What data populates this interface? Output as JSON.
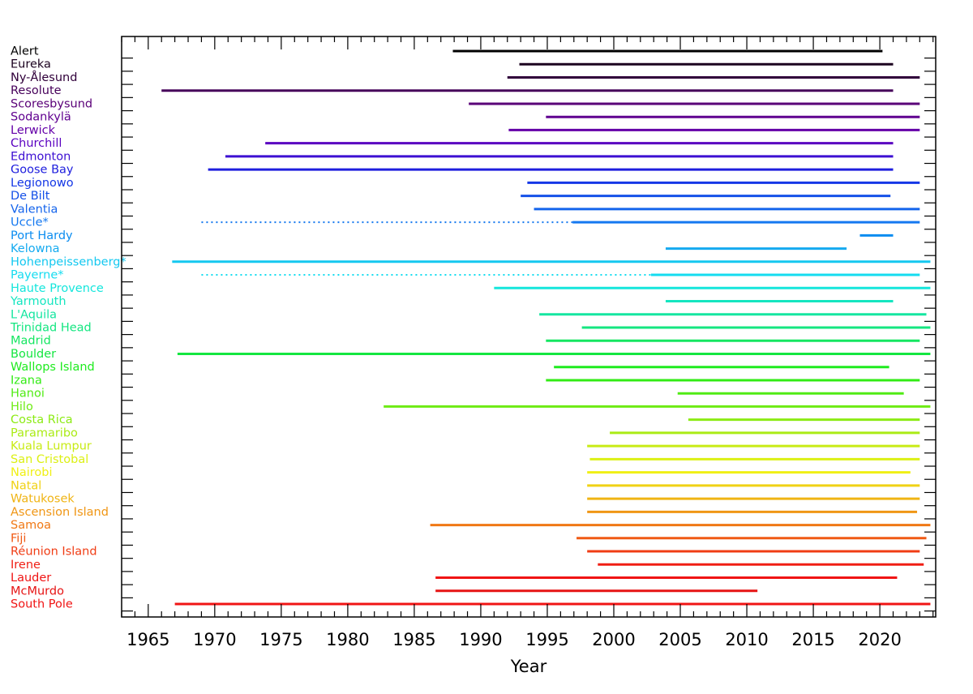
{
  "chart_data": {
    "type": "timeline",
    "title": "",
    "xlabel": "Year",
    "ylabel": "",
    "xlim": [
      1963,
      2024.2
    ],
    "xticks": [
      1965,
      1970,
      1975,
      1980,
      1985,
      1990,
      1995,
      2000,
      2005,
      2010,
      2015,
      2020
    ],
    "grid": false,
    "stations": [
      {
        "name": "Alert",
        "color": "#000000",
        "segments": [
          {
            "start": 1987.9,
            "end": 2020.2,
            "style": "solid"
          }
        ]
      },
      {
        "name": "Eureka",
        "color": "#1a001e",
        "segments": [
          {
            "start": 1992.9,
            "end": 2021.0,
            "style": "solid"
          }
        ]
      },
      {
        "name": "Ny-Ålesund",
        "color": "#30003a",
        "segments": [
          {
            "start": 1992.0,
            "end": 2023.0,
            "style": "solid"
          }
        ]
      },
      {
        "name": "Resolute",
        "color": "#46005a",
        "segments": [
          {
            "start": 1966.0,
            "end": 2021.0,
            "style": "solid"
          }
        ]
      },
      {
        "name": "Scoresbysund",
        "color": "#5a0078",
        "segments": [
          {
            "start": 1989.1,
            "end": 2023.0,
            "style": "solid"
          }
        ]
      },
      {
        "name": "Sodankylä",
        "color": "#600090",
        "segments": [
          {
            "start": 1994.9,
            "end": 2023.0,
            "style": "solid"
          }
        ]
      },
      {
        "name": "Lerwick",
        "color": "#6400a8",
        "segments": [
          {
            "start": 1992.1,
            "end": 2023.0,
            "style": "solid"
          }
        ]
      },
      {
        "name": "Churchill",
        "color": "#5a00c0",
        "segments": [
          {
            "start": 1973.8,
            "end": 2021.0,
            "style": "solid"
          }
        ]
      },
      {
        "name": "Edmonton",
        "color": "#3c0fd2",
        "segments": [
          {
            "start": 1970.8,
            "end": 2021.0,
            "style": "solid"
          }
        ]
      },
      {
        "name": "Goose Bay",
        "color": "#1e1ede",
        "segments": [
          {
            "start": 1969.5,
            "end": 2021.0,
            "style": "solid"
          }
        ]
      },
      {
        "name": "Legionowo",
        "color": "#1437e6",
        "segments": [
          {
            "start": 1993.5,
            "end": 2023.0,
            "style": "solid"
          }
        ]
      },
      {
        "name": "De Bilt",
        "color": "#1450e8",
        "segments": [
          {
            "start": 1993.0,
            "end": 2020.8,
            "style": "solid"
          }
        ]
      },
      {
        "name": "Valentia",
        "color": "#1464ec",
        "segments": [
          {
            "start": 1994.0,
            "end": 2023.0,
            "style": "solid"
          }
        ]
      },
      {
        "name": "Uccle*",
        "color": "#1478f0",
        "segments": [
          {
            "start": 1969.0,
            "end": 1996.9,
            "style": "dotted"
          },
          {
            "start": 1996.9,
            "end": 2023.0,
            "style": "solid"
          }
        ]
      },
      {
        "name": "Port Hardy",
        "color": "#0a8cf0",
        "segments": [
          {
            "start": 2018.5,
            "end": 2021.0,
            "style": "solid"
          }
        ]
      },
      {
        "name": "Kelowna",
        "color": "#14aaf0",
        "segments": [
          {
            "start": 2003.9,
            "end": 2017.5,
            "style": "solid"
          }
        ]
      },
      {
        "name": "Hohenpeissenberg*",
        "color": "#14c8f0",
        "segments": [
          {
            "start": 1966.8,
            "end": 2023.8,
            "style": "solid"
          }
        ]
      },
      {
        "name": "Payerne*",
        "color": "#14dcf0",
        "segments": [
          {
            "start": 1969.0,
            "end": 2002.8,
            "style": "dotted"
          },
          {
            "start": 2002.8,
            "end": 2023.0,
            "style": "solid"
          }
        ]
      },
      {
        "name": "Haute Provence",
        "color": "#14e6dc",
        "segments": [
          {
            "start": 1991.0,
            "end": 2023.8,
            "style": "solid"
          }
        ]
      },
      {
        "name": "Yarmouth",
        "color": "#14e6c0",
        "segments": [
          {
            "start": 2003.9,
            "end": 2021.0,
            "style": "solid"
          }
        ]
      },
      {
        "name": "L'Aquila",
        "color": "#14e6a0",
        "segments": [
          {
            "start": 1994.4,
            "end": 2023.5,
            "style": "solid"
          }
        ]
      },
      {
        "name": "Trinidad Head",
        "color": "#14e680",
        "segments": [
          {
            "start": 1997.6,
            "end": 2023.8,
            "style": "solid"
          }
        ]
      },
      {
        "name": "Madrid",
        "color": "#14e660",
        "segments": [
          {
            "start": 1994.9,
            "end": 2023.0,
            "style": "solid"
          }
        ]
      },
      {
        "name": "Boulder",
        "color": "#14e640",
        "segments": [
          {
            "start": 1967.2,
            "end": 2023.8,
            "style": "solid"
          }
        ]
      },
      {
        "name": "Wallops Island",
        "color": "#1eeb1e",
        "segments": [
          {
            "start": 1995.5,
            "end": 2020.7,
            "style": "solid"
          }
        ]
      },
      {
        "name": "Izana",
        "color": "#32eb14",
        "segments": [
          {
            "start": 1994.9,
            "end": 2023.0,
            "style": "solid"
          }
        ]
      },
      {
        "name": "Hanoi",
        "color": "#50eb14",
        "segments": [
          {
            "start": 2004.8,
            "end": 2021.8,
            "style": "solid"
          }
        ]
      },
      {
        "name": "Hilo",
        "color": "#6eeb14",
        "segments": [
          {
            "start": 1982.7,
            "end": 2023.8,
            "style": "solid"
          }
        ]
      },
      {
        "name": "Costa Rica",
        "color": "#8ceb14",
        "segments": [
          {
            "start": 2005.6,
            "end": 2023.0,
            "style": "solid"
          }
        ]
      },
      {
        "name": "Paramaribo",
        "color": "#aaeb14",
        "segments": [
          {
            "start": 1999.7,
            "end": 2023.0,
            "style": "solid"
          }
        ]
      },
      {
        "name": "Kuala Lumpur",
        "color": "#c8eb14",
        "segments": [
          {
            "start": 1998.0,
            "end": 2023.0,
            "style": "solid"
          }
        ]
      },
      {
        "name": "San Cristobal",
        "color": "#dcf014",
        "segments": [
          {
            "start": 1998.2,
            "end": 2023.0,
            "style": "solid"
          }
        ]
      },
      {
        "name": "Nairobi",
        "color": "#f0f014",
        "segments": [
          {
            "start": 1998.0,
            "end": 2022.3,
            "style": "solid"
          }
        ]
      },
      {
        "name": "Natal",
        "color": "#f0d214",
        "segments": [
          {
            "start": 1998.0,
            "end": 2023.0,
            "style": "solid"
          }
        ]
      },
      {
        "name": "Watukosek",
        "color": "#f0b414",
        "segments": [
          {
            "start": 1998.0,
            "end": 2023.0,
            "style": "solid"
          }
        ]
      },
      {
        "name": "Ascension Island",
        "color": "#f09614",
        "segments": [
          {
            "start": 1998.0,
            "end": 2022.8,
            "style": "solid"
          }
        ]
      },
      {
        "name": "Samoa",
        "color": "#f07814",
        "segments": [
          {
            "start": 1986.2,
            "end": 2023.8,
            "style": "solid"
          }
        ]
      },
      {
        "name": "Fiji",
        "color": "#f05a14",
        "segments": [
          {
            "start": 1997.2,
            "end": 2023.5,
            "style": "solid"
          }
        ]
      },
      {
        "name": "Réunion Island",
        "color": "#f03c14",
        "segments": [
          {
            "start": 1998.0,
            "end": 2023.0,
            "style": "solid"
          }
        ]
      },
      {
        "name": "Irene",
        "color": "#f01e14",
        "segments": [
          {
            "start": 1998.8,
            "end": 2023.3,
            "style": "solid"
          }
        ]
      },
      {
        "name": "Lauder",
        "color": "#f01414",
        "segments": [
          {
            "start": 1986.6,
            "end": 2021.3,
            "style": "solid"
          }
        ]
      },
      {
        "name": "McMurdo",
        "color": "#e61414",
        "segments": [
          {
            "start": 1986.6,
            "end": 2010.8,
            "style": "solid"
          }
        ]
      },
      {
        "name": "South Pole",
        "color": "#f01414",
        "segments": [
          {
            "start": 1967.0,
            "end": 2023.8,
            "style": "solid"
          }
        ]
      }
    ]
  }
}
